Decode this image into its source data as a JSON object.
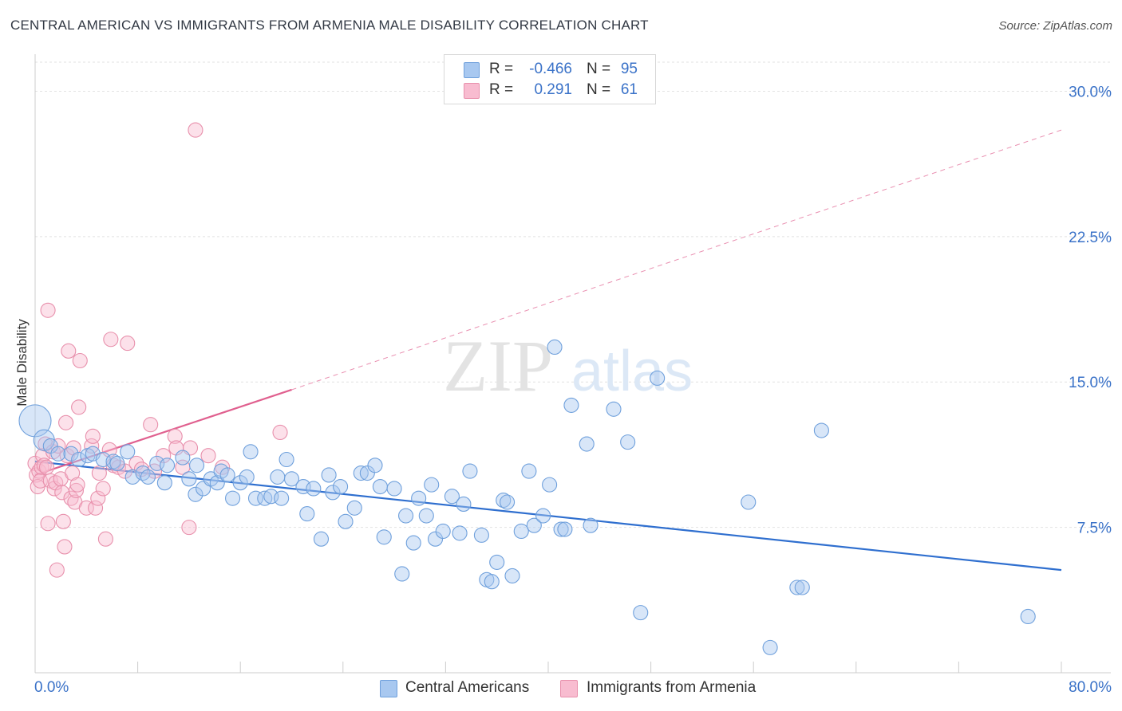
{
  "title": "CENTRAL AMERICAN VS IMMIGRANTS FROM ARMENIA MALE DISABILITY CORRELATION CHART",
  "source": "Source: ZipAtlas.com",
  "watermark": {
    "zip": "ZIP",
    "atlas": "atlas"
  },
  "legend_top": [
    {
      "r_label": "R =",
      "r_value": "-0.466",
      "n_label": "N =",
      "n_value": "95",
      "color": "#a8c8f0",
      "edge": "#6fa0dc"
    },
    {
      "r_label": "R =",
      "r_value": "0.291",
      "n_label": "N =",
      "n_value": "61",
      "color": "#f8bcd0",
      "edge": "#e890ac"
    }
  ],
  "legend_bottom": [
    {
      "label": "Central Americans",
      "color": "#a8c8f0",
      "edge": "#6fa0dc"
    },
    {
      "label": "Immigrants from Armenia",
      "color": "#f8bcd0",
      "edge": "#e890ac"
    }
  ],
  "chart_data": {
    "type": "scatter",
    "title": "CENTRAL AMERICAN VS IMMIGRANTS FROM ARMENIA MALE DISABILITY CORRELATION CHART",
    "xlabel": "",
    "ylabel": "Male Disability",
    "xlim": [
      0,
      80
    ],
    "ylim": [
      0,
      31.5
    ],
    "x_tick_labels": [
      {
        "value": 0,
        "label": "0.0%"
      },
      {
        "value": 80,
        "label": "80.0%"
      }
    ],
    "y_tick_labels": [
      {
        "value": 7.5,
        "label": "7.5%"
      },
      {
        "value": 15.0,
        "label": "15.0%"
      },
      {
        "value": 22.5,
        "label": "22.5%"
      },
      {
        "value": 30.0,
        "label": "30.0%"
      }
    ],
    "x_minor_ticks": [
      0,
      8,
      16,
      24,
      32,
      40,
      48,
      56,
      64,
      72,
      80
    ],
    "grid": true,
    "series": [
      {
        "name": "Central Americans",
        "color": "#a8c8f0",
        "edge": "#6fa0dc",
        "trend": {
          "x0": 0,
          "y0": 10.9,
          "x1": 80,
          "y1": 5.3,
          "color": "#2f6fcf"
        },
        "points": [
          [
            0.0,
            13.0,
            3
          ],
          [
            0.7,
            12.0,
            2
          ],
          [
            1.2,
            11.7,
            1
          ],
          [
            1.8,
            11.3,
            1
          ],
          [
            2.8,
            11.3,
            1
          ],
          [
            3.4,
            11.0,
            1
          ],
          [
            4.1,
            11.2,
            1
          ],
          [
            4.5,
            11.3,
            1
          ],
          [
            5.3,
            11.0,
            1
          ],
          [
            6.1,
            10.9,
            1
          ],
          [
            6.4,
            10.8,
            1
          ],
          [
            7.2,
            11.4,
            1
          ],
          [
            7.6,
            10.1,
            1
          ],
          [
            8.4,
            10.3,
            1
          ],
          [
            8.8,
            10.1,
            1
          ],
          [
            9.5,
            10.8,
            1
          ],
          [
            10.1,
            9.8,
            1
          ],
          [
            10.3,
            10.7,
            1
          ],
          [
            11.5,
            11.1,
            1
          ],
          [
            12.0,
            10.0,
            1
          ],
          [
            12.6,
            10.7,
            1
          ],
          [
            12.5,
            9.2,
            1
          ],
          [
            13.1,
            9.5,
            1
          ],
          [
            13.7,
            10.0,
            1
          ],
          [
            14.2,
            9.8,
            1
          ],
          [
            14.5,
            10.4,
            1
          ],
          [
            15.0,
            10.2,
            1
          ],
          [
            15.4,
            9.0,
            1
          ],
          [
            16.0,
            9.8,
            1
          ],
          [
            16.5,
            10.1,
            1
          ],
          [
            16.8,
            11.4,
            1
          ],
          [
            17.2,
            9.0,
            1
          ],
          [
            17.9,
            9.0,
            1
          ],
          [
            18.4,
            9.1,
            1
          ],
          [
            18.9,
            10.1,
            1
          ],
          [
            19.2,
            9.0,
            1
          ],
          [
            19.6,
            11.0,
            1
          ],
          [
            20.0,
            10.0,
            1
          ],
          [
            20.9,
            9.6,
            1
          ],
          [
            21.2,
            8.2,
            1
          ],
          [
            21.7,
            9.5,
            1
          ],
          [
            22.3,
            6.9,
            1
          ],
          [
            22.9,
            10.2,
            1
          ],
          [
            23.2,
            9.3,
            1
          ],
          [
            23.8,
            9.6,
            1
          ],
          [
            24.2,
            7.8,
            1
          ],
          [
            24.9,
            8.5,
            1
          ],
          [
            25.4,
            10.3,
            1
          ],
          [
            25.9,
            10.3,
            1
          ],
          [
            26.5,
            10.7,
            1
          ],
          [
            26.9,
            9.6,
            1
          ],
          [
            27.2,
            7.0,
            1
          ],
          [
            28.0,
            9.5,
            1
          ],
          [
            28.6,
            5.1,
            1
          ],
          [
            28.9,
            8.1,
            1
          ],
          [
            29.5,
            6.7,
            1
          ],
          [
            29.9,
            9.0,
            1
          ],
          [
            30.5,
            8.1,
            1
          ],
          [
            30.9,
            9.7,
            1
          ],
          [
            31.2,
            6.9,
            1
          ],
          [
            31.8,
            7.3,
            1
          ],
          [
            32.5,
            9.1,
            1
          ],
          [
            33.1,
            7.2,
            1
          ],
          [
            33.4,
            8.7,
            1
          ],
          [
            33.9,
            10.4,
            1
          ],
          [
            34.8,
            7.1,
            1
          ],
          [
            35.2,
            4.8,
            1
          ],
          [
            35.6,
            4.7,
            1
          ],
          [
            36.0,
            5.7,
            1
          ],
          [
            36.5,
            8.9,
            1
          ],
          [
            36.8,
            8.8,
            1
          ],
          [
            37.2,
            5.0,
            1
          ],
          [
            37.9,
            7.3,
            1
          ],
          [
            38.5,
            10.4,
            1
          ],
          [
            38.9,
            7.6,
            1
          ],
          [
            39.6,
            8.1,
            1
          ],
          [
            40.1,
            9.7,
            1
          ],
          [
            40.5,
            16.8,
            1
          ],
          [
            41.0,
            7.4,
            1
          ],
          [
            41.3,
            7.4,
            1
          ],
          [
            41.8,
            13.8,
            1
          ],
          [
            43.0,
            11.8,
            1
          ],
          [
            43.3,
            7.6,
            1
          ],
          [
            45.1,
            13.6,
            1
          ],
          [
            46.2,
            11.9,
            1
          ],
          [
            47.2,
            3.1,
            1
          ],
          [
            48.5,
            15.2,
            1
          ],
          [
            55.6,
            8.8,
            1
          ],
          [
            57.3,
            1.3,
            1
          ],
          [
            59.4,
            4.4,
            1
          ],
          [
            59.8,
            4.4,
            1
          ],
          [
            61.3,
            12.5,
            1
          ],
          [
            77.4,
            2.9,
            1
          ]
        ]
      },
      {
        "name": "Immigrants from Armenia",
        "color": "#f8bcd0",
        "edge": "#e890ac",
        "trend": {
          "x0": 0,
          "y0": 10.2,
          "x1": 20,
          "y1": 14.6,
          "dash_x1": 80,
          "dash_y1": 28.0,
          "color": "#e0608f"
        },
        "points": [
          [
            0.0,
            10.8,
            1
          ],
          [
            0.1,
            10.2,
            1
          ],
          [
            0.2,
            9.6,
            1
          ],
          [
            0.3,
            10.4,
            1
          ],
          [
            0.4,
            9.9,
            1
          ],
          [
            0.5,
            10.6,
            1
          ],
          [
            0.6,
            11.2,
            1
          ],
          [
            0.7,
            10.7,
            1
          ],
          [
            0.8,
            11.8,
            1
          ],
          [
            0.9,
            10.6,
            1
          ],
          [
            1.0,
            18.7,
            1
          ],
          [
            1.0,
            7.7,
            1
          ],
          [
            1.2,
            9.9,
            1
          ],
          [
            1.4,
            11.4,
            1
          ],
          [
            1.5,
            9.5,
            1
          ],
          [
            1.6,
            9.8,
            1
          ],
          [
            1.7,
            5.3,
            1
          ],
          [
            1.8,
            11.7,
            1
          ],
          [
            2.0,
            10.0,
            1
          ],
          [
            2.1,
            9.3,
            1
          ],
          [
            2.2,
            7.8,
            1
          ],
          [
            2.3,
            6.5,
            1
          ],
          [
            2.4,
            12.9,
            1
          ],
          [
            2.5,
            11.2,
            1
          ],
          [
            2.6,
            16.6,
            1
          ],
          [
            2.8,
            9.0,
            1
          ],
          [
            2.9,
            10.3,
            1
          ],
          [
            3.0,
            11.6,
            1
          ],
          [
            3.1,
            8.8,
            1
          ],
          [
            3.2,
            9.4,
            1
          ],
          [
            3.3,
            9.7,
            1
          ],
          [
            3.4,
            13.7,
            1
          ],
          [
            3.5,
            16.1,
            1
          ],
          [
            4.0,
            8.5,
            1
          ],
          [
            4.4,
            11.7,
            1
          ],
          [
            4.5,
            12.2,
            1
          ],
          [
            4.7,
            8.5,
            1
          ],
          [
            4.9,
            9.0,
            1
          ],
          [
            5.0,
            10.3,
            1
          ],
          [
            5.3,
            9.5,
            1
          ],
          [
            5.5,
            6.9,
            1
          ],
          [
            5.8,
            11.5,
            1
          ],
          [
            5.9,
            17.2,
            1
          ],
          [
            6.1,
            10.7,
            1
          ],
          [
            6.5,
            10.6,
            1
          ],
          [
            7.0,
            10.4,
            1
          ],
          [
            7.2,
            17.0,
            1
          ],
          [
            7.9,
            10.8,
            1
          ],
          [
            8.3,
            10.5,
            1
          ],
          [
            9.0,
            12.8,
            1
          ],
          [
            9.3,
            10.4,
            1
          ],
          [
            10.0,
            11.2,
            1
          ],
          [
            10.9,
            12.2,
            1
          ],
          [
            11.0,
            11.6,
            1
          ],
          [
            11.5,
            10.6,
            1
          ],
          [
            12.0,
            7.5,
            1
          ],
          [
            12.1,
            11.6,
            1
          ],
          [
            12.5,
            28.0,
            1
          ],
          [
            13.5,
            11.2,
            1
          ],
          [
            14.6,
            10.6,
            1
          ],
          [
            19.1,
            12.4,
            1
          ]
        ]
      }
    ]
  }
}
